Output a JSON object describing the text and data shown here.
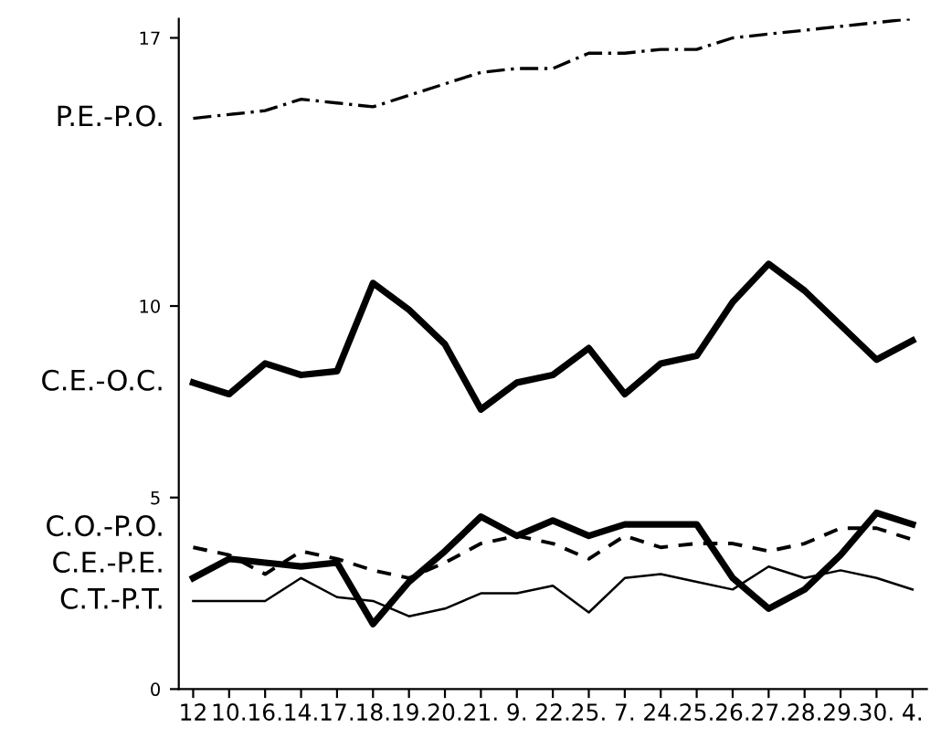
{
  "chart_data": {
    "type": "line",
    "categories": [
      "12",
      "10.",
      "16.",
      "14.",
      "17.",
      "18.",
      "19.",
      "20.",
      "21.",
      "9.",
      "22.",
      "25.",
      "7.",
      "24.",
      "25.",
      "26.",
      "27.",
      "28.",
      "29.",
      "30.",
      "4."
    ],
    "series": [
      {
        "name": "P.E.-P.O.",
        "color": "#000000",
        "line_style": "dashdot",
        "values": [
          14.9,
          15.0,
          15.1,
          15.4,
          15.3,
          15.2,
          15.5,
          15.8,
          16.1,
          16.2,
          16.2,
          16.6,
          16.6,
          16.7,
          16.7,
          17.0,
          17.1,
          17.2,
          17.3,
          17.4,
          17.5
        ]
      },
      {
        "name": "C.E.-O.C.",
        "color": "#000000",
        "line_style": "solid",
        "values": [
          8.0,
          7.7,
          8.5,
          8.2,
          8.3,
          10.6,
          9.9,
          9.0,
          7.3,
          8.0,
          8.2,
          8.9,
          7.7,
          8.5,
          8.7,
          10.1,
          11.1,
          10.4,
          9.5,
          8.6,
          9.1
        ]
      },
      {
        "name": "C.E.-P.E.",
        "color": "#000000",
        "line_style": "solid",
        "values": [
          2.9,
          3.4,
          3.3,
          3.2,
          3.3,
          1.7,
          2.8,
          3.6,
          4.5,
          4.0,
          4.4,
          4.0,
          4.3,
          4.3,
          4.3,
          2.9,
          2.1,
          2.6,
          3.5,
          4.6,
          4.3
        ]
      },
      {
        "name": "C.O.-P.O.",
        "color": "#000000",
        "line_style": "dashed",
        "values": [
          3.7,
          3.5,
          3.0,
          3.6,
          3.4,
          3.1,
          2.9,
          3.3,
          3.8,
          4.0,
          3.8,
          3.4,
          4.0,
          3.7,
          3.8,
          3.8,
          3.6,
          3.8,
          4.2,
          4.2,
          3.9
        ]
      },
      {
        "name": "C.T.-P.T.",
        "color": "#000000",
        "line_style": "solid",
        "values": [
          2.3,
          2.3,
          2.3,
          2.9,
          2.4,
          2.3,
          1.9,
          2.1,
          2.5,
          2.5,
          2.7,
          2.0,
          2.9,
          3.0,
          2.8,
          2.6,
          3.2,
          2.9,
          3.1,
          2.9,
          2.6
        ]
      }
    ],
    "ylim": [
      0,
      17.5
    ],
    "yticks": [
      0,
      5,
      10,
      17
    ],
    "grid": false,
    "legend": false,
    "marker": "none"
  }
}
